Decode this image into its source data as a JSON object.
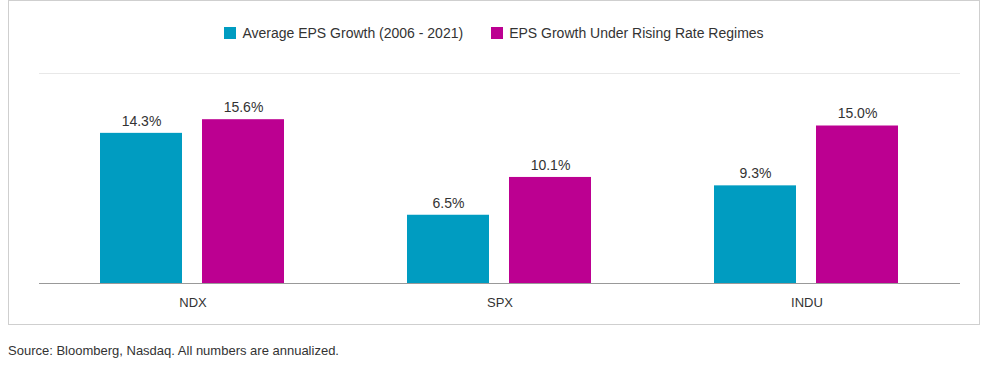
{
  "chart_data": {
    "type": "bar",
    "categories": [
      "NDX",
      "SPX",
      "INDU"
    ],
    "series": [
      {
        "name": "Average EPS Growth (2006 - 2021)",
        "color": "#009cc1",
        "values": [
          14.3,
          6.5,
          9.3
        ],
        "value_labels": [
          "14.3%",
          "6.5%",
          "9.3%"
        ]
      },
      {
        "name": "EPS Growth Under Rising Rate Regimes",
        "color": "#bc0091",
        "values": [
          15.6,
          10.1,
          15.0
        ],
        "value_labels": [
          "15.6%",
          "10.1%",
          "15.0%"
        ]
      }
    ],
    "ylim": [
      0,
      20
    ],
    "data_labels": true,
    "tick_labels": "x",
    "grid": false,
    "legend": "top",
    "caption": "Source: Bloomberg, Nasdaq. All numbers are annualized."
  }
}
